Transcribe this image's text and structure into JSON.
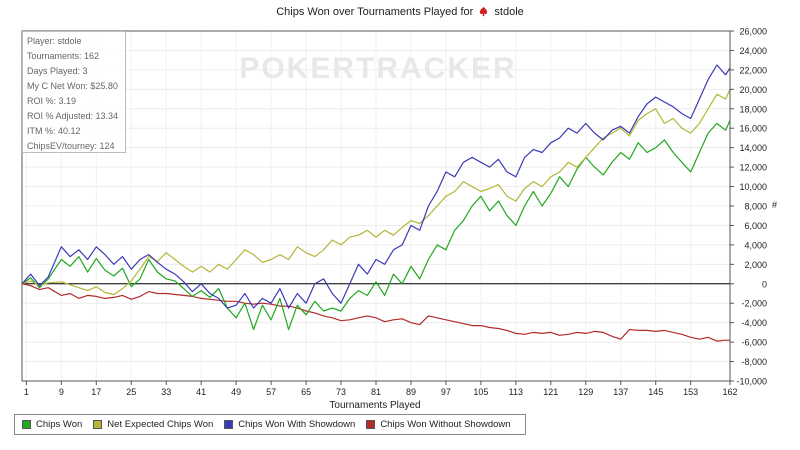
{
  "title": {
    "prefix": "Chips Won over Tournaments Played for",
    "player": "stdole",
    "suit_icon": "spade-icon"
  },
  "watermark": "POKERTRACKER",
  "stats": [
    "Player: stdole",
    "Tournaments: 162",
    "Days Played: 3",
    "My C Net Won: $25.80",
    "ROI %: 3.19",
    "ROI % Adjusted: 13.34",
    "ITM %: 40.12",
    "ChipsEV/tourney: 124"
  ],
  "chart_data": {
    "type": "line",
    "title": "Chips Won over Tournaments Played for stdole",
    "xlabel": "Tournaments Played",
    "ylabel": "#",
    "xlim": [
      0,
      162
    ],
    "ylim": [
      -10000,
      26000
    ],
    "x_ticks": [
      1,
      9,
      17,
      25,
      33,
      41,
      49,
      57,
      65,
      73,
      81,
      89,
      97,
      105,
      113,
      121,
      129,
      137,
      145,
      153,
      162
    ],
    "y_ticks": [
      -10000,
      -8000,
      -6000,
      -4000,
      -2000,
      0,
      2000,
      4000,
      6000,
      8000,
      10000,
      12000,
      14000,
      16000,
      18000,
      20000,
      22000,
      24000,
      26000
    ],
    "grid": true,
    "legend_position": "bottom",
    "series": [
      {
        "name": "Chips Won",
        "color": "#22a722",
        "x": [
          0,
          2,
          4,
          6,
          9,
          11,
          13,
          15,
          17,
          19,
          21,
          23,
          25,
          27,
          29,
          31,
          33,
          35,
          37,
          39,
          41,
          43,
          45,
          47,
          49,
          51,
          53,
          55,
          57,
          59,
          61,
          63,
          65,
          67,
          69,
          71,
          73,
          75,
          77,
          79,
          81,
          83,
          85,
          87,
          89,
          91,
          93,
          95,
          97,
          99,
          101,
          103,
          105,
          107,
          109,
          111,
          113,
          115,
          117,
          119,
          121,
          123,
          125,
          127,
          129,
          131,
          133,
          135,
          137,
          139,
          141,
          143,
          145,
          147,
          149,
          151,
          153,
          155,
          157,
          159,
          161,
          162
        ],
        "values": [
          0,
          600,
          -400,
          500,
          2500,
          1800,
          2800,
          1200,
          2600,
          1400,
          800,
          1600,
          -300,
          500,
          2500,
          1200,
          500,
          300,
          -500,
          -1300,
          -700,
          -1400,
          -500,
          -2500,
          -3500,
          -2000,
          -4700,
          -2200,
          -3700,
          -1500,
          -4700,
          -2200,
          -3200,
          -1800,
          -2800,
          -2500,
          -2800,
          -1500,
          -700,
          -1200,
          200,
          -1200,
          1000,
          0,
          1800,
          500,
          2500,
          4000,
          3500,
          5500,
          6500,
          8000,
          9000,
          7500,
          8500,
          7000,
          6000,
          8000,
          9500,
          8000,
          9300,
          11000,
          10000,
          11800,
          13000,
          12000,
          11200,
          12500,
          13500,
          12800,
          14500,
          13500,
          14000,
          14800,
          13500,
          12500,
          11500,
          13500,
          15500,
          16500,
          15800,
          16800
        ]
      },
      {
        "name": "Net Expected Chips Won",
        "color": "#b5b53a",
        "x": [
          0,
          2,
          4,
          6,
          9,
          11,
          13,
          15,
          17,
          19,
          21,
          23,
          25,
          27,
          29,
          31,
          33,
          35,
          37,
          39,
          41,
          43,
          45,
          47,
          49,
          51,
          53,
          55,
          57,
          59,
          61,
          63,
          65,
          67,
          69,
          71,
          73,
          75,
          77,
          79,
          81,
          83,
          85,
          87,
          89,
          91,
          93,
          95,
          97,
          99,
          101,
          103,
          105,
          107,
          109,
          111,
          113,
          115,
          117,
          119,
          121,
          123,
          125,
          127,
          129,
          131,
          133,
          135,
          137,
          139,
          141,
          143,
          145,
          147,
          149,
          151,
          153,
          155,
          157,
          159,
          161,
          162
        ],
        "values": [
          0,
          300,
          -200,
          100,
          200,
          -100,
          -400,
          -700,
          -300,
          -900,
          -1100,
          -500,
          300,
          1500,
          2800,
          2300,
          3200,
          2500,
          1800,
          1200,
          1800,
          1200,
          2000,
          1500,
          2500,
          3500,
          3000,
          2200,
          2500,
          3000,
          2500,
          3800,
          3200,
          2800,
          3500,
          4500,
          4000,
          4800,
          5000,
          5500,
          4800,
          5500,
          5000,
          5800,
          6500,
          6200,
          7000,
          8000,
          9000,
          9500,
          10500,
          10000,
          9500,
          9800,
          10200,
          9000,
          8500,
          9800,
          10500,
          10000,
          11000,
          11500,
          12500,
          12000,
          13000,
          14000,
          15000,
          15500,
          16000,
          15200,
          16800,
          17500,
          18000,
          16500,
          17000,
          16000,
          15500,
          16500,
          18000,
          19500,
          19000,
          20000
        ]
      },
      {
        "name": "Chips Won With Showdown",
        "color": "#3a3ab8",
        "x": [
          0,
          2,
          4,
          6,
          9,
          11,
          13,
          15,
          17,
          19,
          21,
          23,
          25,
          27,
          29,
          31,
          33,
          35,
          37,
          39,
          41,
          43,
          45,
          47,
          49,
          51,
          53,
          55,
          57,
          59,
          61,
          63,
          65,
          67,
          69,
          71,
          73,
          75,
          77,
          79,
          81,
          83,
          85,
          87,
          89,
          91,
          93,
          95,
          97,
          99,
          101,
          103,
          105,
          107,
          109,
          111,
          113,
          115,
          117,
          119,
          121,
          123,
          125,
          127,
          129,
          131,
          133,
          135,
          137,
          139,
          141,
          143,
          145,
          147,
          149,
          151,
          153,
          155,
          157,
          159,
          161,
          162
        ],
        "values": [
          0,
          1000,
          -200,
          700,
          3800,
          2800,
          3500,
          2500,
          3800,
          3000,
          2000,
          2800,
          1500,
          2500,
          3000,
          2200,
          1500,
          1000,
          200,
          -800,
          0,
          -1000,
          -1500,
          -2500,
          -2200,
          -1000,
          -2500,
          -1500,
          -2000,
          -500,
          -2500,
          -1000,
          -2000,
          0,
          500,
          -1000,
          -2000,
          0,
          2000,
          1000,
          2500,
          2000,
          3500,
          4000,
          6000,
          5500,
          8000,
          9500,
          11500,
          11000,
          12500,
          13000,
          12500,
          12000,
          12800,
          11500,
          11000,
          13000,
          13800,
          13500,
          14500,
          15000,
          16000,
          15500,
          16500,
          15500,
          14800,
          15800,
          16200,
          15500,
          17200,
          18500,
          19200,
          18700,
          18200,
          17500,
          17000,
          19000,
          21000,
          22500,
          21500,
          22200
        ]
      },
      {
        "name": "Chips Won Without Showdown",
        "color": "#b22a2a",
        "x": [
          0,
          2,
          4,
          6,
          9,
          11,
          13,
          15,
          17,
          19,
          21,
          23,
          25,
          27,
          29,
          31,
          33,
          35,
          37,
          39,
          41,
          43,
          45,
          47,
          49,
          51,
          53,
          55,
          57,
          59,
          61,
          63,
          65,
          67,
          69,
          71,
          73,
          75,
          77,
          79,
          81,
          83,
          85,
          87,
          89,
          91,
          93,
          95,
          97,
          99,
          101,
          103,
          105,
          107,
          109,
          111,
          113,
          115,
          117,
          119,
          121,
          123,
          125,
          127,
          129,
          131,
          133,
          135,
          137,
          139,
          141,
          143,
          145,
          147,
          149,
          151,
          153,
          155,
          157,
          159,
          161,
          162
        ],
        "values": [
          0,
          -200,
          -600,
          -400,
          -1200,
          -1000,
          -1500,
          -1200,
          -1300,
          -1500,
          -1400,
          -1200,
          -1600,
          -1300,
          -800,
          -1000,
          -1000,
          -1100,
          -1200,
          -1300,
          -1500,
          -1600,
          -1700,
          -1800,
          -1800,
          -2000,
          -2100,
          -2000,
          -2100,
          -2300,
          -2300,
          -2500,
          -2800,
          -3000,
          -3300,
          -3500,
          -3800,
          -3700,
          -3500,
          -3300,
          -3500,
          -3900,
          -3700,
          -3600,
          -4000,
          -4200,
          -3300,
          -3500,
          -3700,
          -3900,
          -4100,
          -4300,
          -4300,
          -4500,
          -4600,
          -4800,
          -5100,
          -5200,
          -5000,
          -5100,
          -5000,
          -5300,
          -5200,
          -5000,
          -5100,
          -4900,
          -5000,
          -5400,
          -5700,
          -4700,
          -4800,
          -4800,
          -4900,
          -4800,
          -5000,
          -5200,
          -5500,
          -5700,
          -5500,
          -5900,
          -5800,
          -5800
        ]
      }
    ]
  }
}
